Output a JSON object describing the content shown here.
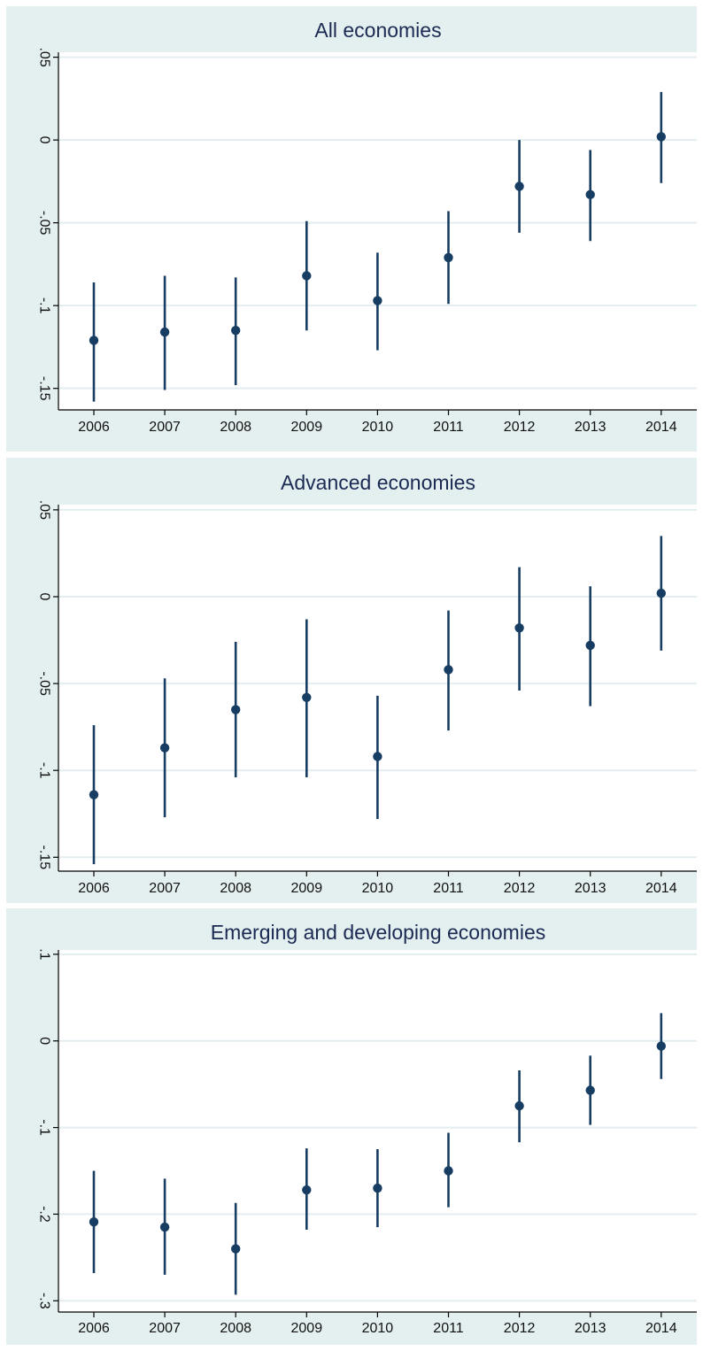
{
  "colors": {
    "outer_bg": "#e4eff0",
    "plot_bg": "#ffffff",
    "grid": "#e3eef0",
    "axis": "#000000",
    "marker": "#173d63",
    "title": "#1b2a52"
  },
  "chart_data": [
    {
      "type": "scatter",
      "title": "All economies",
      "xlabel": "",
      "ylabel": "",
      "grid": true,
      "legend": "none",
      "x": [
        "2006",
        "2007",
        "2008",
        "2009",
        "2010",
        "2011",
        "2012",
        "2013",
        "2014"
      ],
      "ylim": [
        -0.163,
        0.053
      ],
      "yticks": [
        0.05,
        0,
        -0.05,
        -0.1,
        -0.15
      ],
      "ytick_labels": [
        ".05",
        "0",
        "-.05",
        "-.1",
        "-.15"
      ],
      "estimate": [
        -0.121,
        -0.116,
        -0.115,
        -0.082,
        -0.097,
        -0.071,
        -0.028,
        -0.033,
        0.002
      ],
      "ci_low": [
        -0.158,
        -0.151,
        -0.148,
        -0.115,
        -0.127,
        -0.099,
        -0.056,
        -0.061,
        -0.026
      ],
      "ci_high": [
        -0.086,
        -0.082,
        -0.083,
        -0.049,
        -0.068,
        -0.043,
        0.0,
        -0.006,
        0.029
      ]
    },
    {
      "type": "scatter",
      "title": "Advanced economies",
      "xlabel": "",
      "ylabel": "",
      "grid": true,
      "legend": "none",
      "x": [
        "2006",
        "2007",
        "2008",
        "2009",
        "2010",
        "2011",
        "2012",
        "2013",
        "2014"
      ],
      "ylim": [
        -0.158,
        0.053
      ],
      "yticks": [
        0.05,
        0,
        -0.05,
        -0.1,
        -0.15
      ],
      "ytick_labels": [
        ".05",
        "0",
        "-.05",
        "-.1",
        "-.15"
      ],
      "estimate": [
        -0.114,
        -0.087,
        -0.065,
        -0.058,
        -0.092,
        -0.042,
        -0.018,
        -0.028,
        0.002
      ],
      "ci_low": [
        -0.154,
        -0.127,
        -0.104,
        -0.104,
        -0.128,
        -0.077,
        -0.054,
        -0.063,
        -0.031
      ],
      "ci_high": [
        -0.074,
        -0.047,
        -0.026,
        -0.013,
        -0.057,
        -0.008,
        0.017,
        0.006,
        0.035
      ]
    },
    {
      "type": "scatter",
      "title": "Emerging and developing economies",
      "xlabel": "",
      "ylabel": "",
      "grid": true,
      "legend": "none",
      "x": [
        "2006",
        "2007",
        "2008",
        "2009",
        "2010",
        "2011",
        "2012",
        "2013",
        "2014"
      ],
      "ylim": [
        -0.313,
        0.105
      ],
      "yticks": [
        0.1,
        0,
        -0.1,
        -0.2,
        -0.3
      ],
      "ytick_labels": [
        ".1",
        "0",
        "-.1",
        "-.2",
        "-.3"
      ],
      "estimate": [
        -0.209,
        -0.215,
        -0.24,
        -0.172,
        -0.17,
        -0.15,
        -0.075,
        -0.057,
        -0.006
      ],
      "ci_low": [
        -0.268,
        -0.27,
        -0.293,
        -0.218,
        -0.215,
        -0.192,
        -0.117,
        -0.097,
        -0.044
      ],
      "ci_high": [
        -0.15,
        -0.159,
        -0.187,
        -0.124,
        -0.125,
        -0.106,
        -0.034,
        -0.017,
        0.032
      ]
    }
  ]
}
